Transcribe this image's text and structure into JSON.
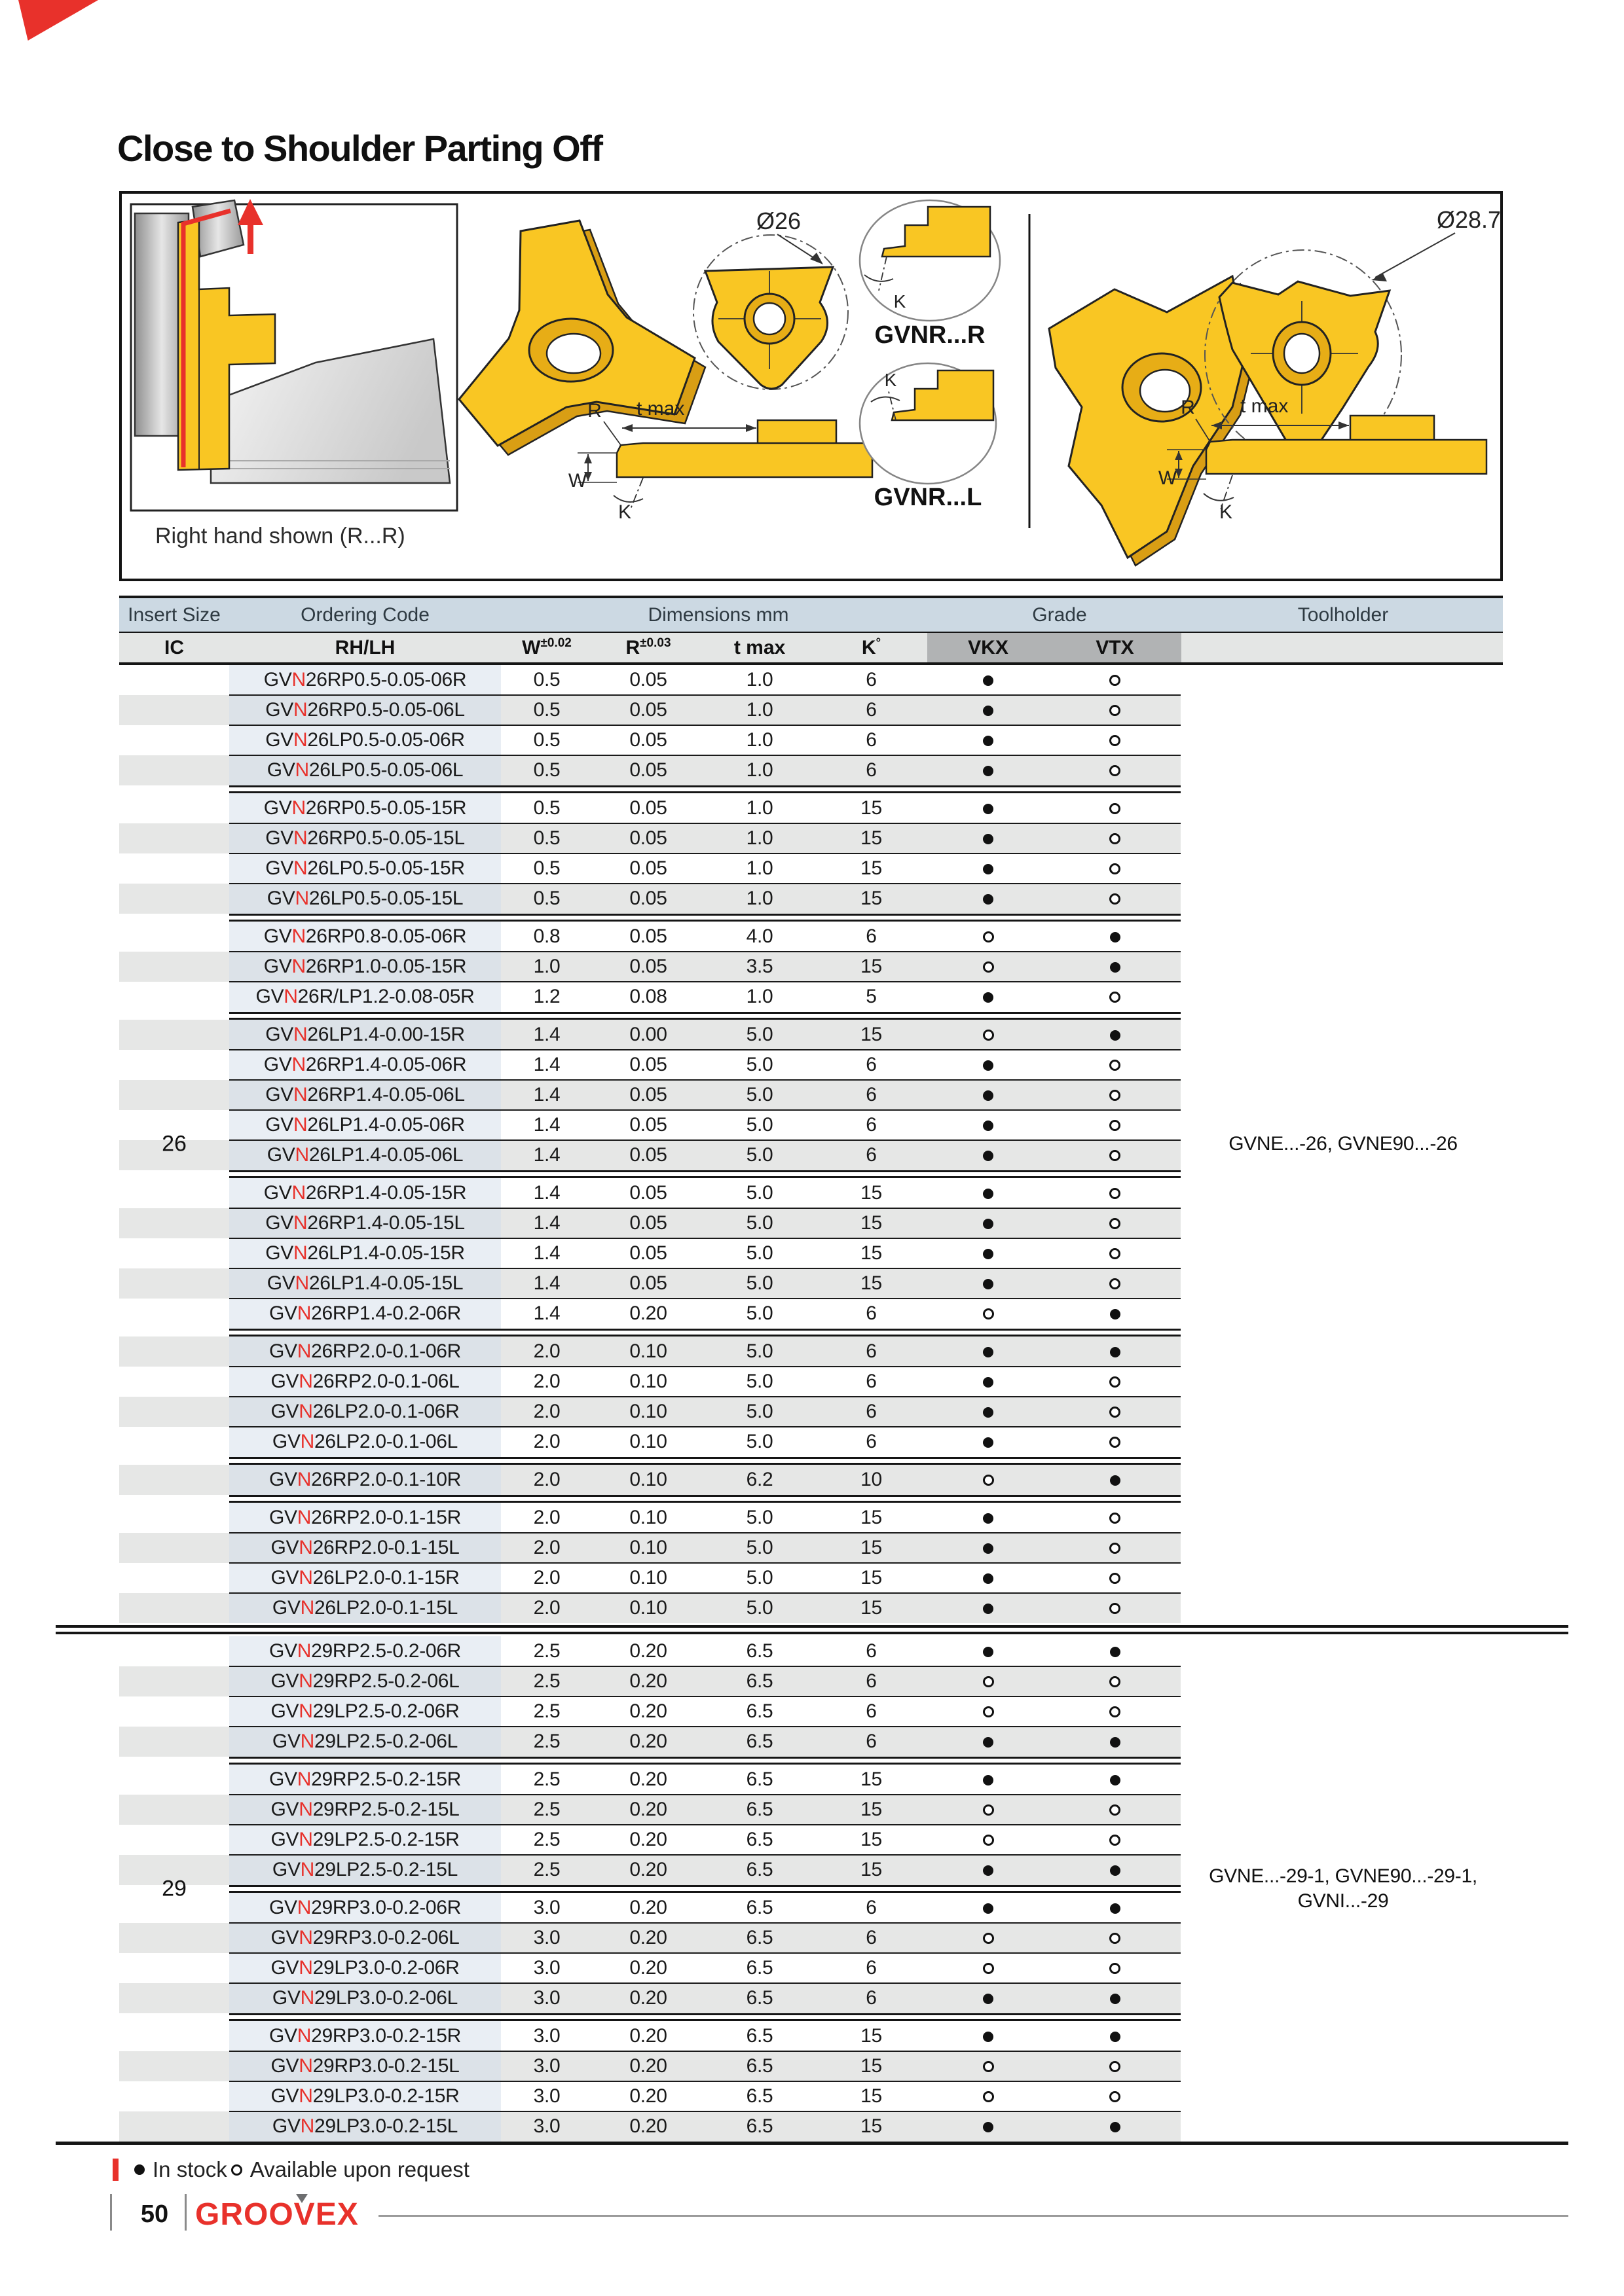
{
  "page": {
    "title": "Close to Shoulder Parting Off",
    "page_number": "50",
    "brand": "GROOVEX"
  },
  "colors": {
    "accent_red": "#e8312b",
    "insert_yellow": "#f9c623",
    "header_blue": "#ccd9e3",
    "grade_block_gray": "#b1b3b4"
  },
  "figure": {
    "caption": "Right hand shown (R...R)",
    "dia_small": "Ø26",
    "dia_large": "Ø28.7",
    "variant_r": "GVNR...R",
    "variant_l": "GVNR...L",
    "dim_r": "R",
    "dim_tmax": "t max",
    "dim_w": "W",
    "dim_k": "K"
  },
  "table": {
    "headers": {
      "insert_size": "Insert Size",
      "ordering_code": "Ordering Code",
      "dimensions": "Dimensions mm",
      "grade": "Grade",
      "toolholder": "Toolholder",
      "sub": {
        "ic": "IC",
        "rhlh": "RH/LH",
        "w": {
          "label": "W",
          "tol": "±0.02"
        },
        "r": {
          "label": "R",
          "tol": "±0.03"
        },
        "tmax": "t max",
        "k": {
          "label": "K",
          "tol": "°"
        },
        "vkx": "VKX",
        "vtx": "VTX"
      }
    },
    "legend": {
      "in_stock": "In stock",
      "on_request": "Available upon request"
    },
    "sections": [
      {
        "insert_size": "26",
        "toolholder": [
          "GVNE...-26, GVNE90...-26"
        ],
        "groups": [
          [
            [
              "GVN26RP0.5-0.05-06R",
              "0.5",
              "0.05",
              "1.0",
              "6",
              "f",
              "o"
            ],
            [
              "GVN26RP0.5-0.05-06L",
              "0.5",
              "0.05",
              "1.0",
              "6",
              "f",
              "o"
            ],
            [
              "GVN26LP0.5-0.05-06R",
              "0.5",
              "0.05",
              "1.0",
              "6",
              "f",
              "o"
            ],
            [
              "GVN26LP0.5-0.05-06L",
              "0.5",
              "0.05",
              "1.0",
              "6",
              "f",
              "o"
            ]
          ],
          [
            [
              "GVN26RP0.5-0.05-15R",
              "0.5",
              "0.05",
              "1.0",
              "15",
              "f",
              "o"
            ],
            [
              "GVN26RP0.5-0.05-15L",
              "0.5",
              "0.05",
              "1.0",
              "15",
              "f",
              "o"
            ],
            [
              "GVN26LP0.5-0.05-15R",
              "0.5",
              "0.05",
              "1.0",
              "15",
              "f",
              "o"
            ],
            [
              "GVN26LP0.5-0.05-15L",
              "0.5",
              "0.05",
              "1.0",
              "15",
              "f",
              "o"
            ]
          ],
          [
            [
              "GVN26RP0.8-0.05-06R",
              "0.8",
              "0.05",
              "4.0",
              "6",
              "o",
              "f"
            ],
            [
              "GVN26RP1.0-0.05-15R",
              "1.0",
              "0.05",
              "3.5",
              "15",
              "o",
              "f"
            ],
            [
              "GVN26R/LP1.2-0.08-05R",
              "1.2",
              "0.08",
              "1.0",
              "5",
              "f",
              "o"
            ]
          ],
          [
            [
              "GVN26LP1.4-0.00-15R",
              "1.4",
              "0.00",
              "5.0",
              "15",
              "o",
              "f"
            ],
            [
              "GVN26RP1.4-0.05-06R",
              "1.4",
              "0.05",
              "5.0",
              "6",
              "f",
              "o"
            ],
            [
              "GVN26RP1.4-0.05-06L",
              "1.4",
              "0.05",
              "5.0",
              "6",
              "f",
              "o"
            ],
            [
              "GVN26LP1.4-0.05-06R",
              "1.4",
              "0.05",
              "5.0",
              "6",
              "f",
              "o"
            ],
            [
              "GVN26LP1.4-0.05-06L",
              "1.4",
              "0.05",
              "5.0",
              "6",
              "f",
              "o"
            ]
          ],
          [
            [
              "GVN26RP1.4-0.05-15R",
              "1.4",
              "0.05",
              "5.0",
              "15",
              "f",
              "o"
            ],
            [
              "GVN26RP1.4-0.05-15L",
              "1.4",
              "0.05",
              "5.0",
              "15",
              "f",
              "o"
            ],
            [
              "GVN26LP1.4-0.05-15R",
              "1.4",
              "0.05",
              "5.0",
              "15",
              "f",
              "o"
            ],
            [
              "GVN26LP1.4-0.05-15L",
              "1.4",
              "0.05",
              "5.0",
              "15",
              "f",
              "o"
            ],
            [
              "GVN26RP1.4-0.2-06R",
              "1.4",
              "0.20",
              "5.0",
              "6",
              "o",
              "f"
            ]
          ],
          [
            [
              "GVN26RP2.0-0.1-06R",
              "2.0",
              "0.10",
              "5.0",
              "6",
              "f",
              "f"
            ],
            [
              "GVN26RP2.0-0.1-06L",
              "2.0",
              "0.10",
              "5.0",
              "6",
              "f",
              "o"
            ],
            [
              "GVN26LP2.0-0.1-06R",
              "2.0",
              "0.10",
              "5.0",
              "6",
              "f",
              "o"
            ],
            [
              "GVN26LP2.0-0.1-06L",
              "2.0",
              "0.10",
              "5.0",
              "6",
              "f",
              "o"
            ]
          ],
          [
            [
              "GVN26RP2.0-0.1-10R",
              "2.0",
              "0.10",
              "6.2",
              "10",
              "o",
              "f"
            ]
          ],
          [
            [
              "GVN26RP2.0-0.1-15R",
              "2.0",
              "0.10",
              "5.0",
              "15",
              "f",
              "o"
            ],
            [
              "GVN26RP2.0-0.1-15L",
              "2.0",
              "0.10",
              "5.0",
              "15",
              "f",
              "o"
            ],
            [
              "GVN26LP2.0-0.1-15R",
              "2.0",
              "0.10",
              "5.0",
              "15",
              "f",
              "o"
            ],
            [
              "GVN26LP2.0-0.1-15L",
              "2.0",
              "0.10",
              "5.0",
              "15",
              "f",
              "o"
            ]
          ]
        ]
      },
      {
        "insert_size": "29",
        "toolholder": [
          "GVNE...-29-1, GVNE90...-29-1,",
          "GVNI...-29"
        ],
        "groups": [
          [
            [
              "GVN29RP2.5-0.2-06R",
              "2.5",
              "0.20",
              "6.5",
              "6",
              "f",
              "f"
            ],
            [
              "GVN29RP2.5-0.2-06L",
              "2.5",
              "0.20",
              "6.5",
              "6",
              "o",
              "o"
            ],
            [
              "GVN29LP2.5-0.2-06R",
              "2.5",
              "0.20",
              "6.5",
              "6",
              "o",
              "o"
            ],
            [
              "GVN29LP2.5-0.2-06L",
              "2.5",
              "0.20",
              "6.5",
              "6",
              "f",
              "f"
            ]
          ],
          [
            [
              "GVN29RP2.5-0.2-15R",
              "2.5",
              "0.20",
              "6.5",
              "15",
              "f",
              "f"
            ],
            [
              "GVN29RP2.5-0.2-15L",
              "2.5",
              "0.20",
              "6.5",
              "15",
              "o",
              "o"
            ],
            [
              "GVN29LP2.5-0.2-15R",
              "2.5",
              "0.20",
              "6.5",
              "15",
              "o",
              "o"
            ],
            [
              "GVN29LP2.5-0.2-15L",
              "2.5",
              "0.20",
              "6.5",
              "15",
              "f",
              "f"
            ]
          ],
          [
            [
              "GVN29RP3.0-0.2-06R",
              "3.0",
              "0.20",
              "6.5",
              "6",
              "f",
              "f"
            ],
            [
              "GVN29RP3.0-0.2-06L",
              "3.0",
              "0.20",
              "6.5",
              "6",
              "o",
              "o"
            ],
            [
              "GVN29LP3.0-0.2-06R",
              "3.0",
              "0.20",
              "6.5",
              "6",
              "o",
              "o"
            ],
            [
              "GVN29LP3.0-0.2-06L",
              "3.0",
              "0.20",
              "6.5",
              "6",
              "f",
              "f"
            ]
          ],
          [
            [
              "GVN29RP3.0-0.2-15R",
              "3.0",
              "0.20",
              "6.5",
              "15",
              "f",
              "f"
            ],
            [
              "GVN29RP3.0-0.2-15L",
              "3.0",
              "0.20",
              "6.5",
              "15",
              "o",
              "o"
            ],
            [
              "GVN29LP3.0-0.2-15R",
              "3.0",
              "0.20",
              "6.5",
              "15",
              "o",
              "o"
            ],
            [
              "GVN29LP3.0-0.2-15L",
              "3.0",
              "0.20",
              "6.5",
              "15",
              "f",
              "f"
            ]
          ]
        ]
      }
    ]
  }
}
